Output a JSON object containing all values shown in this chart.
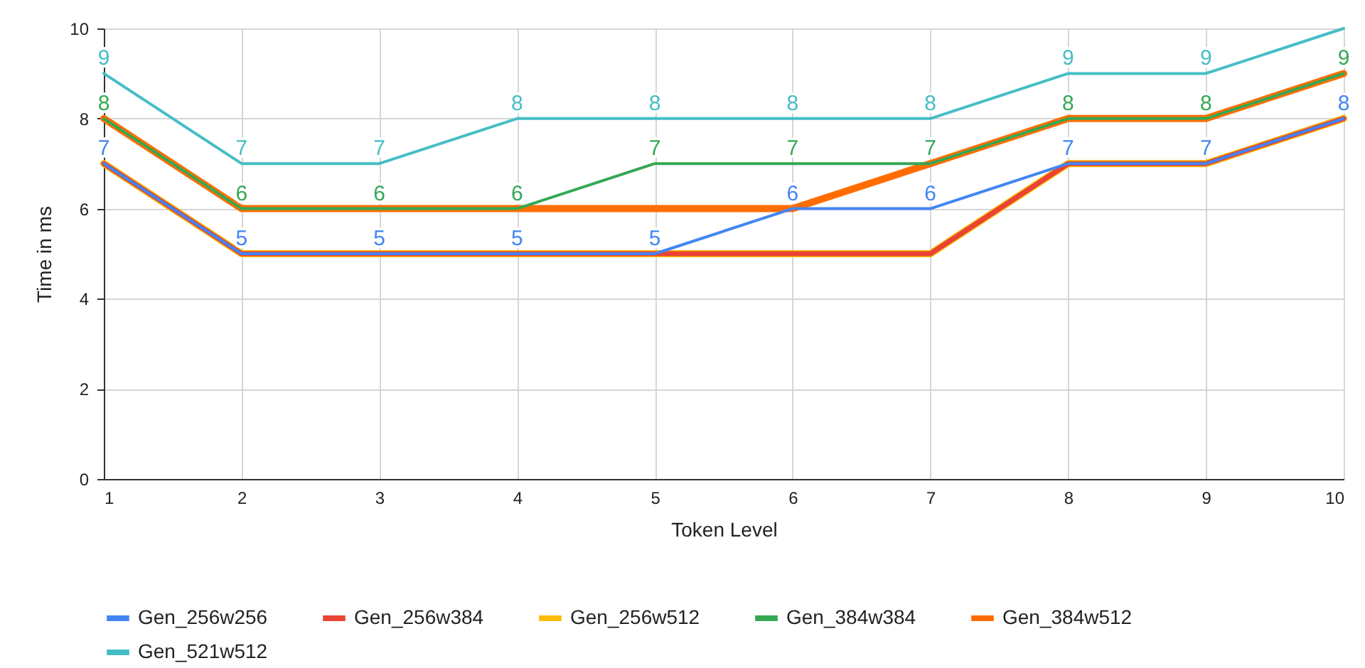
{
  "chart_data": {
    "type": "line",
    "xlabel": "Token Level",
    "ylabel": "Time in ms",
    "x": [
      1,
      2,
      3,
      4,
      5,
      6,
      7,
      8,
      9,
      10
    ],
    "xlim": [
      1,
      10
    ],
    "xticks": [
      1,
      2,
      3,
      4,
      5,
      6,
      7,
      8,
      9,
      10
    ],
    "ylim": [
      0,
      10
    ],
    "yticks": [
      0,
      2,
      4,
      6,
      8,
      10
    ],
    "grid": true,
    "legend": "bottom",
    "line_style": "solid",
    "marker": "none",
    "series": [
      {
        "name": "Gen_256w256",
        "color": "#4285f4",
        "values": [
          7,
          5,
          5,
          5,
          5,
          6,
          6,
          7,
          7,
          8
        ],
        "value_labels": [
          "7",
          "5",
          "5",
          "5",
          "5",
          "6",
          "6",
          "7",
          "7",
          "8"
        ]
      },
      {
        "name": "Gen_256w384",
        "color": "#ea4335",
        "values": [
          7,
          5,
          5,
          5,
          5,
          5,
          5,
          7,
          7,
          8
        ]
      },
      {
        "name": "Gen_256w512",
        "color": "#fbbc04",
        "values": [
          7,
          5,
          5,
          5,
          5,
          5,
          5,
          7,
          7,
          8
        ]
      },
      {
        "name": "Gen_384w384",
        "color": "#34a853",
        "values": [
          8,
          6,
          6,
          6,
          7,
          7,
          7,
          8,
          8,
          9
        ],
        "value_labels": [
          "8",
          "6",
          "6",
          "6",
          "7",
          "7",
          "7",
          "8",
          "8",
          "9"
        ]
      },
      {
        "name": "Gen_384w512",
        "color": "#ff6d01",
        "values": [
          8,
          6,
          6,
          6,
          6,
          6,
          7,
          8,
          8,
          9
        ]
      },
      {
        "name": "Gen_521w512",
        "color": "#46bdc6",
        "values": [
          9,
          7,
          7,
          8,
          8,
          8,
          8,
          9,
          9,
          10
        ],
        "value_labels": [
          "9",
          "7",
          "7",
          "8",
          "8",
          "8",
          "8",
          "9",
          "9",
          null
        ]
      }
    ]
  }
}
